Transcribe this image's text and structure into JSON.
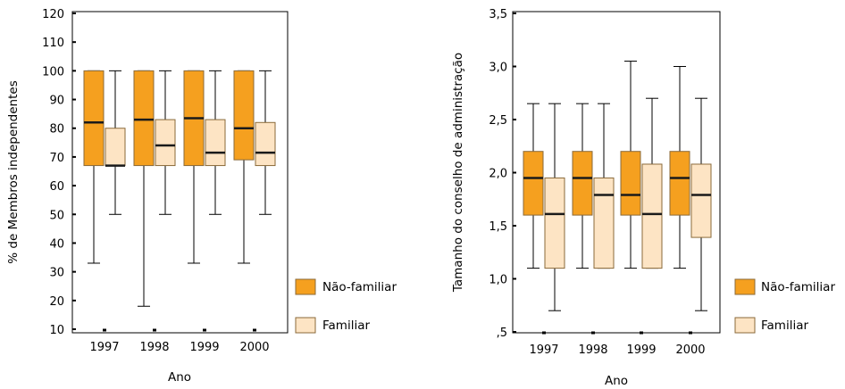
{
  "colors": {
    "non_family_fill": "#f5a01f",
    "family_fill": "#fde4c4",
    "box_stroke": "#8a6a3a",
    "median": "#1a1a1a"
  },
  "legend": {
    "non_family": "Não-familiar",
    "family": "Familiar"
  },
  "chart_data": [
    {
      "type": "boxplot",
      "xlabel": "Ano",
      "ylabel": "% de Membros independentes",
      "categories": [
        "1997",
        "1998",
        "1999",
        "2000"
      ],
      "ylim": [
        10,
        120
      ],
      "yticks": [
        10,
        20,
        30,
        40,
        50,
        60,
        70,
        80,
        90,
        100,
        110,
        120
      ],
      "ytick_labels": [
        "10",
        "20",
        "30",
        "40",
        "50",
        "60",
        "70",
        "80",
        "90",
        "100",
        "110",
        "120"
      ],
      "grid": false,
      "legend_position": "right",
      "series": [
        {
          "name": "Não-familiar",
          "boxes": [
            {
              "min": 33,
              "q1": 67,
              "median": 82,
              "q3": 100,
              "max": 100
            },
            {
              "min": 18,
              "q1": 67,
              "median": 83,
              "q3": 100,
              "max": 100
            },
            {
              "min": 33,
              "q1": 67,
              "median": 83.5,
              "q3": 100,
              "max": 100
            },
            {
              "min": 33,
              "q1": 69,
              "median": 80,
              "q3": 100,
              "max": 100
            }
          ]
        },
        {
          "name": "Familiar",
          "boxes": [
            {
              "min": 50,
              "q1": 67,
              "median": 67,
              "q3": 80,
              "max": 100
            },
            {
              "min": 50,
              "q1": 67,
              "median": 74,
              "q3": 83,
              "max": 100
            },
            {
              "min": 50,
              "q1": 67,
              "median": 71.5,
              "q3": 83,
              "max": 100
            },
            {
              "min": 50,
              "q1": 67,
              "median": 71.5,
              "q3": 82,
              "max": 100
            }
          ]
        }
      ]
    },
    {
      "type": "boxplot",
      "xlabel": "Ano",
      "ylabel": "Tamanho do conselho de administração",
      "categories": [
        "1997",
        "1998",
        "1999",
        "2000"
      ],
      "ylim": [
        0.5,
        3.5
      ],
      "yticks": [
        0.5,
        1.0,
        1.5,
        2.0,
        2.5,
        3.0,
        3.5
      ],
      "ytick_labels": [
        ",5",
        "1,0",
        "1,5",
        "2,0",
        "2,5",
        "3,0",
        "3,5"
      ],
      "grid": false,
      "legend_position": "right",
      "series": [
        {
          "name": "Não-familiar",
          "boxes": [
            {
              "min": 1.1,
              "q1": 1.6,
              "median": 1.95,
              "q3": 2.2,
              "max": 2.65
            },
            {
              "min": 1.1,
              "q1": 1.6,
              "median": 1.95,
              "q3": 2.2,
              "max": 2.65
            },
            {
              "min": 1.1,
              "q1": 1.6,
              "median": 1.79,
              "q3": 2.2,
              "max": 3.05
            },
            {
              "min": 1.1,
              "q1": 1.6,
              "median": 1.95,
              "q3": 2.2,
              "max": 3.0
            }
          ]
        },
        {
          "name": "Familiar",
          "boxes": [
            {
              "min": 0.7,
              "q1": 1.1,
              "median": 1.61,
              "q3": 1.95,
              "max": 2.65
            },
            {
              "min": 1.1,
              "q1": 1.1,
              "median": 1.79,
              "q3": 1.95,
              "max": 2.65
            },
            {
              "min": 1.1,
              "q1": 1.1,
              "median": 1.61,
              "q3": 2.08,
              "max": 2.7
            },
            {
              "min": 0.7,
              "q1": 1.39,
              "median": 1.79,
              "q3": 2.08,
              "max": 2.7
            }
          ]
        }
      ]
    }
  ]
}
